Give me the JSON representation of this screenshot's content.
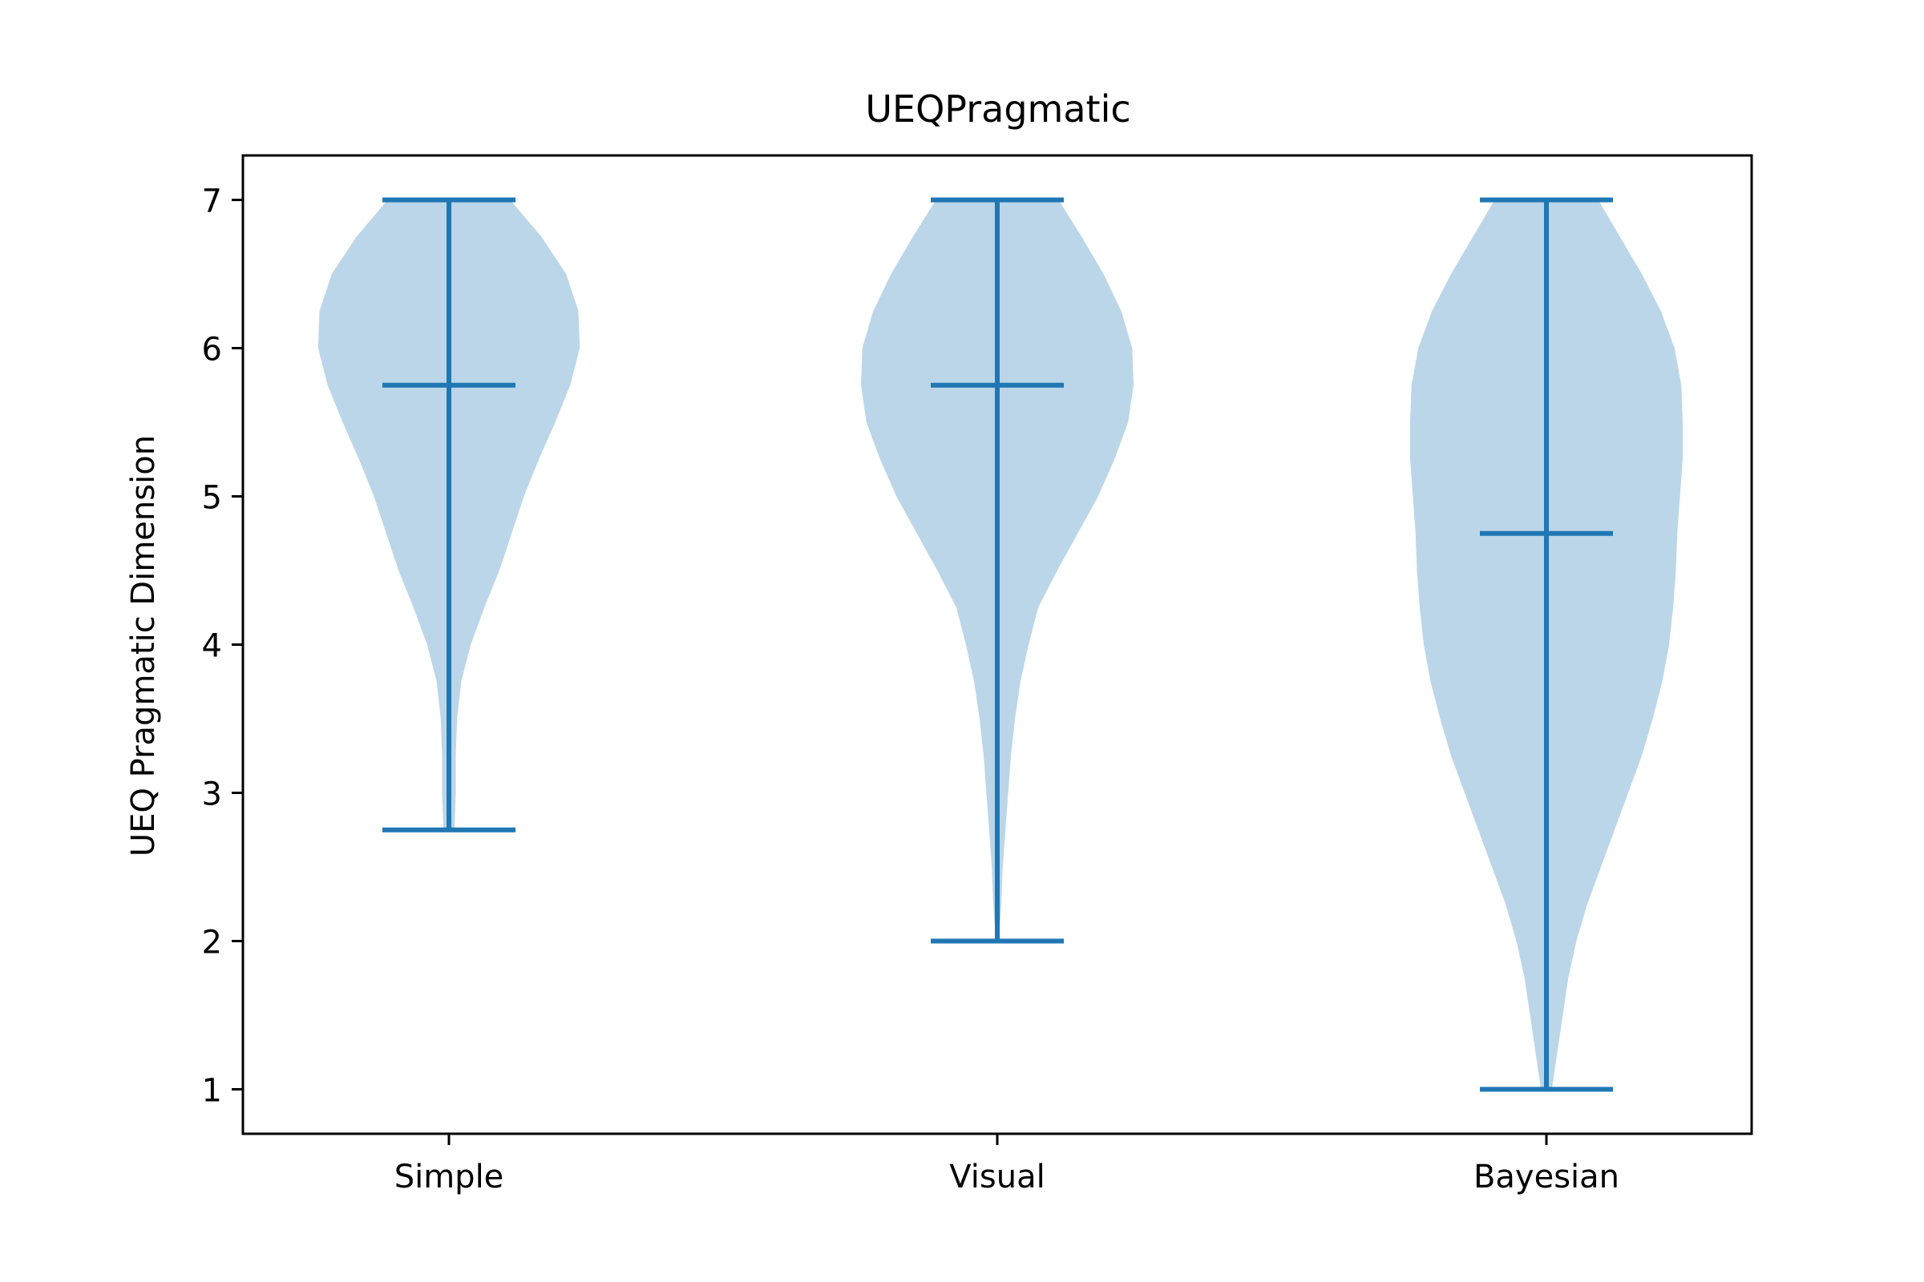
{
  "chart_data": {
    "type": "violin",
    "title": "UEQPragmatic",
    "xlabel": "",
    "ylabel": "UEQ Pragmatic Dimension",
    "categories": [
      "Simple",
      "Visual",
      "Bayesian"
    ],
    "ylim": [
      0.7,
      7.3
    ],
    "yticks": [
      1,
      2,
      3,
      4,
      5,
      6,
      7
    ],
    "grid": false,
    "colors": {
      "body": "#1f77b4",
      "body_opacity": 0.3,
      "lines": "#1f77b4",
      "axis": "#000000"
    },
    "series": [
      {
        "category": "Simple",
        "min": 2.75,
        "median": 5.75,
        "max": 7.0,
        "density": [
          [
            2.75,
            0.04
          ],
          [
            3.0,
            0.05
          ],
          [
            3.25,
            0.05
          ],
          [
            3.5,
            0.06
          ],
          [
            3.75,
            0.09
          ],
          [
            4.0,
            0.16
          ],
          [
            4.25,
            0.26
          ],
          [
            4.5,
            0.37
          ],
          [
            4.75,
            0.46
          ],
          [
            5.0,
            0.55
          ],
          [
            5.25,
            0.66
          ],
          [
            5.5,
            0.78
          ],
          [
            5.75,
            0.89
          ],
          [
            6.0,
            0.96
          ],
          [
            6.25,
            0.95
          ],
          [
            6.5,
            0.86
          ],
          [
            6.75,
            0.68
          ],
          [
            7.0,
            0.45
          ]
        ]
      },
      {
        "category": "Visual",
        "min": 2.0,
        "median": 5.75,
        "max": 7.0,
        "density": [
          [
            2.0,
            0.01
          ],
          [
            2.25,
            0.03
          ],
          [
            2.5,
            0.04
          ],
          [
            2.75,
            0.06
          ],
          [
            3.0,
            0.08
          ],
          [
            3.25,
            0.1
          ],
          [
            3.5,
            0.13
          ],
          [
            3.75,
            0.17
          ],
          [
            4.0,
            0.23
          ],
          [
            4.25,
            0.3
          ],
          [
            4.5,
            0.44
          ],
          [
            4.75,
            0.59
          ],
          [
            5.0,
            0.74
          ],
          [
            5.25,
            0.86
          ],
          [
            5.5,
            0.96
          ],
          [
            5.75,
            1.0
          ],
          [
            6.0,
            0.99
          ],
          [
            6.25,
            0.91
          ],
          [
            6.5,
            0.78
          ],
          [
            6.75,
            0.62
          ],
          [
            7.0,
            0.45
          ]
        ]
      },
      {
        "category": "Bayesian",
        "min": 1.0,
        "median": 4.75,
        "max": 7.0,
        "density": [
          [
            1.0,
            0.04
          ],
          [
            1.25,
            0.08
          ],
          [
            1.5,
            0.12
          ],
          [
            1.75,
            0.16
          ],
          [
            2.0,
            0.22
          ],
          [
            2.25,
            0.3
          ],
          [
            2.5,
            0.4
          ],
          [
            2.75,
            0.5
          ],
          [
            3.0,
            0.6
          ],
          [
            3.25,
            0.7
          ],
          [
            3.5,
            0.78
          ],
          [
            3.75,
            0.85
          ],
          [
            4.0,
            0.9
          ],
          [
            4.25,
            0.93
          ],
          [
            4.5,
            0.95
          ],
          [
            4.75,
            0.96
          ],
          [
            5.0,
            0.98
          ],
          [
            5.25,
            1.0
          ],
          [
            5.5,
            1.0
          ],
          [
            5.75,
            0.99
          ],
          [
            6.0,
            0.94
          ],
          [
            6.25,
            0.84
          ],
          [
            6.5,
            0.7
          ],
          [
            6.75,
            0.54
          ],
          [
            7.0,
            0.38
          ]
        ]
      }
    ]
  }
}
